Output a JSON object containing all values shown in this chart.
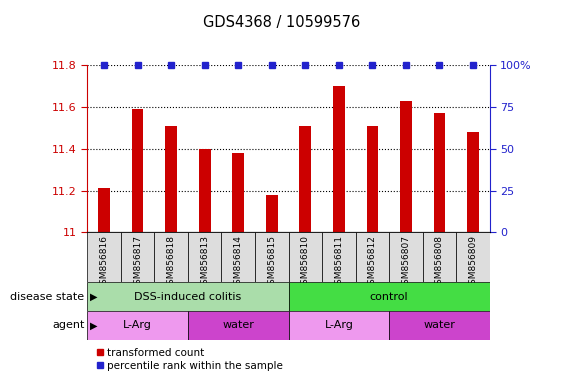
{
  "title": "GDS4368 / 10599576",
  "samples": [
    "GSM856816",
    "GSM856817",
    "GSM856818",
    "GSM856813",
    "GSM856814",
    "GSM856815",
    "GSM856810",
    "GSM856811",
    "GSM856812",
    "GSM856807",
    "GSM856808",
    "GSM856809"
  ],
  "bar_values": [
    11.21,
    11.59,
    11.51,
    11.4,
    11.38,
    11.18,
    11.51,
    11.7,
    11.51,
    11.63,
    11.57,
    11.48
  ],
  "ylim": [
    11.0,
    11.8
  ],
  "yticks": [
    11.0,
    11.2,
    11.4,
    11.6,
    11.8
  ],
  "ytick_labels": [
    "11",
    "11.2",
    "11.4",
    "11.6",
    "11.8"
  ],
  "y2ticks": [
    0,
    25,
    50,
    75,
    100
  ],
  "y2tick_labels": [
    "0",
    "25",
    "50",
    "75",
    "100%"
  ],
  "bar_color": "#cc0000",
  "dot_color": "#2222cc",
  "left_tick_color": "#cc0000",
  "right_tick_color": "#2222cc",
  "ds_colors": [
    "#aaddaa",
    "#44dd44"
  ],
  "ds_labels": [
    "DSS-induced colitis",
    "control"
  ],
  "ds_splits": [
    6,
    6
  ],
  "agent_colors_list": [
    "#ee99ee",
    "#cc44cc",
    "#ee99ee",
    "#cc44cc"
  ],
  "agent_labels": [
    "L-Arg",
    "water",
    "L-Arg",
    "water"
  ],
  "agent_splits": [
    3,
    3,
    3,
    3
  ],
  "legend_labels": [
    "transformed count",
    "percentile rank within the sample"
  ],
  "legend_colors": [
    "#cc0000",
    "#2222cc"
  ]
}
